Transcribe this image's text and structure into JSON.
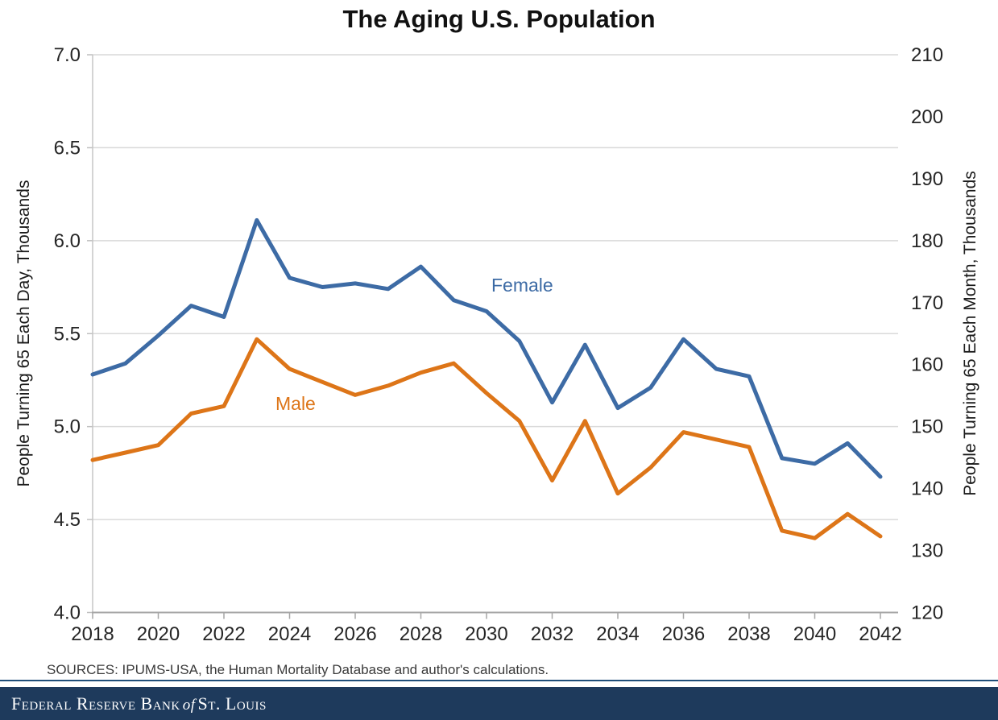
{
  "chart_data": {
    "type": "line",
    "title": "The Aging U.S. Population",
    "x": [
      2018,
      2019,
      2020,
      2021,
      2022,
      2023,
      2024,
      2025,
      2026,
      2027,
      2028,
      2029,
      2030,
      2031,
      2032,
      2033,
      2034,
      2035,
      2036,
      2037,
      2038,
      2039,
      2040,
      2041,
      2042
    ],
    "series": [
      {
        "name": "Female",
        "color": "#3d6ba5",
        "values": [
          5.28,
          5.34,
          5.49,
          5.65,
          5.59,
          6.11,
          5.8,
          5.75,
          5.77,
          5.74,
          5.86,
          5.68,
          5.62,
          5.46,
          5.13,
          5.44,
          5.1,
          5.21,
          5.47,
          5.31,
          5.27,
          4.83,
          4.8,
          4.91,
          4.73
        ]
      },
      {
        "name": "Male",
        "color": "#dd7518",
        "values": [
          4.82,
          4.86,
          4.9,
          5.07,
          5.11,
          5.47,
          5.31,
          5.24,
          5.17,
          5.22,
          5.29,
          5.34,
          5.18,
          5.03,
          4.71,
          5.03,
          4.64,
          4.78,
          4.97,
          4.93,
          4.89,
          4.44,
          4.4,
          4.53,
          4.41
        ]
      }
    ],
    "left_axis": {
      "label": "People Turning 65 Each Day, Thousands",
      "min": 4.0,
      "max": 7.0,
      "step": 0.5,
      "ticks": [
        "7.0",
        "6.5",
        "6.0",
        "5.5",
        "5.0",
        "4.5",
        "4.0"
      ]
    },
    "right_axis": {
      "label": "People Turning 65 Each Month, Thousands",
      "min": 120,
      "max": 210,
      "step": 10,
      "ticks": [
        "210",
        "200",
        "190",
        "180",
        "170",
        "160",
        "150",
        "140",
        "130",
        "120"
      ]
    },
    "x_axis": {
      "tick_labels": [
        "2018",
        "2020",
        "2022",
        "2024",
        "2026",
        "2028",
        "2030",
        "2032",
        "2034",
        "2036",
        "2038",
        "2040",
        "2042"
      ]
    },
    "grid": "horizontal",
    "legend_position": "inline-labels",
    "colors": {
      "gridline": "#d9d9d9",
      "axis_line": "#a6a6a6",
      "tick_label": "#262626"
    }
  },
  "annotations": {
    "female_label": "Female",
    "male_label": "Male"
  },
  "source_note": "SOURCES: IPUMS-USA, the Human Mortality Database and author's calculations.",
  "footer": {
    "bar_color": "#1e3a5c",
    "accent_line_color": "#1f4e79",
    "parts": [
      "Federal Reserve Bank",
      "of",
      "St. Louis"
    ]
  }
}
